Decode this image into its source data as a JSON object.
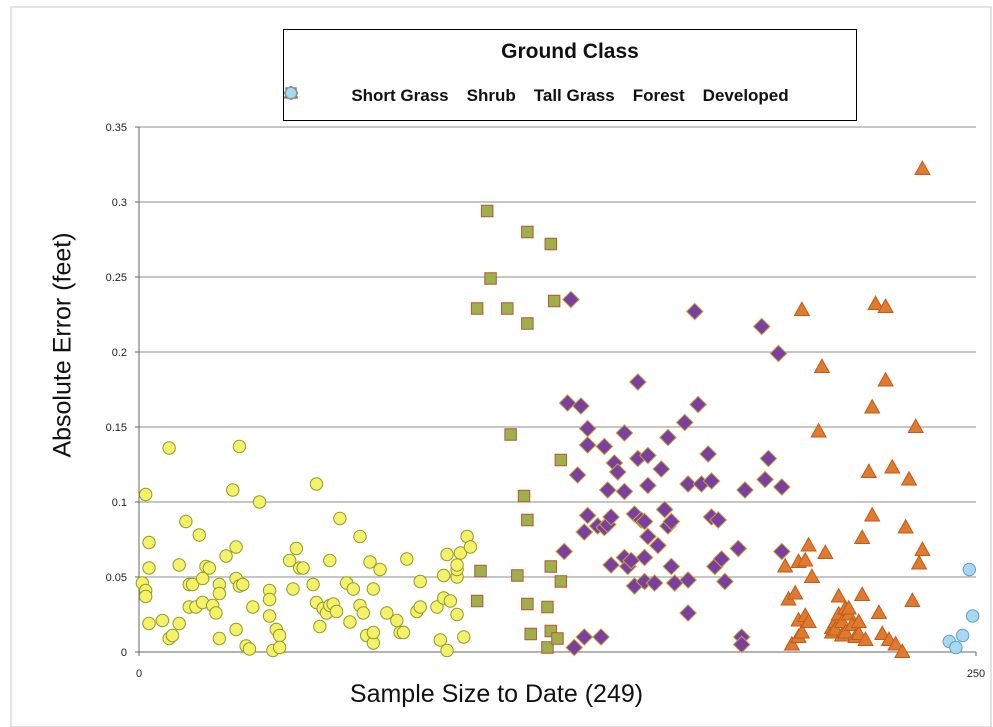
{
  "chart_data": {
    "type": "scatter",
    "title": "",
    "xlabel": "Sample Size to Date (249)",
    "ylabel": "Absolute Error (feet)",
    "xlim": [
      0,
      250
    ],
    "ylim": [
      0,
      0.35
    ],
    "x_ticks": [
      "0",
      "250"
    ],
    "y_ticks": [
      "0",
      "0.05",
      "0.1",
      "0.15",
      "0.2",
      "0.25",
      "0.3",
      "0.35"
    ],
    "grid": "horizontal",
    "legend": {
      "title": "Ground Class",
      "placement": "top"
    },
    "series": [
      {
        "name": "Short Grass",
        "marker": "circle",
        "color": "#f5f26a",
        "edge": "#8e9a2a",
        "points": [
          [
            1,
            0.046
          ],
          [
            2,
            0.105
          ],
          [
            2,
            0.041
          ],
          [
            2,
            0.037
          ],
          [
            3,
            0.073
          ],
          [
            3,
            0.056
          ],
          [
            3,
            0.019
          ],
          [
            7,
            0.021
          ],
          [
            9,
            0.136
          ],
          [
            9,
            0.009
          ],
          [
            10,
            0.011
          ],
          [
            12,
            0.058
          ],
          [
            12,
            0.019
          ],
          [
            14,
            0.087
          ],
          [
            15,
            0.045
          ],
          [
            15,
            0.03
          ],
          [
            16,
            0.045
          ],
          [
            17,
            0.03
          ],
          [
            18,
            0.078
          ],
          [
            19,
            0.049
          ],
          [
            19,
            0.033
          ],
          [
            20,
            0.057
          ],
          [
            21,
            0.056
          ],
          [
            22,
            0.031
          ],
          [
            23,
            0.026
          ],
          [
            24,
            0.045
          ],
          [
            24,
            0.039
          ],
          [
            24,
            0.009
          ],
          [
            26,
            0.064
          ],
          [
            28,
            0.108
          ],
          [
            29,
            0.015
          ],
          [
            29,
            0.049
          ],
          [
            29,
            0.07
          ],
          [
            30,
            0.137
          ],
          [
            30,
            0.044
          ],
          [
            31,
            0.045
          ],
          [
            32,
            0.004
          ],
          [
            33,
            0.002
          ],
          [
            34,
            0.03
          ],
          [
            36,
            0.1
          ],
          [
            39,
            0.041
          ],
          [
            39,
            0.035
          ],
          [
            39,
            0.024
          ],
          [
            40,
            0.001
          ],
          [
            41,
            0.015
          ],
          [
            42,
            0.011
          ],
          [
            42,
            0.003
          ],
          [
            45,
            0.061
          ],
          [
            46,
            0.042
          ],
          [
            47,
            0.069
          ],
          [
            48,
            0.056
          ],
          [
            49,
            0.056
          ],
          [
            52,
            0.045
          ],
          [
            53,
            0.112
          ],
          [
            53,
            0.033
          ],
          [
            54,
            0.017
          ],
          [
            55,
            0.029
          ],
          [
            56,
            0.026
          ],
          [
            57,
            0.031
          ],
          [
            57,
            0.061
          ],
          [
            58,
            0.032
          ],
          [
            59,
            0.027
          ],
          [
            60,
            0.089
          ],
          [
            62,
            0.046
          ],
          [
            63,
            0.02
          ],
          [
            64,
            0.042
          ],
          [
            66,
            0.077
          ],
          [
            66,
            0.031
          ],
          [
            67,
            0.026
          ],
          [
            68,
            0.011
          ],
          [
            69,
            0.06
          ],
          [
            70,
            0.006
          ],
          [
            70,
            0.013
          ],
          [
            70,
            0.042
          ],
          [
            72,
            0.055
          ],
          [
            74,
            0.026
          ],
          [
            77,
            0.021
          ],
          [
            78,
            0.013
          ],
          [
            79,
            0.013
          ],
          [
            80,
            0.062
          ],
          [
            83,
            0.027
          ],
          [
            84,
            0.047
          ],
          [
            84,
            0.03
          ],
          [
            89,
            0.03
          ],
          [
            90,
            0.008
          ],
          [
            91,
            0.036
          ],
          [
            91,
            0.051
          ],
          [
            92,
            0.001
          ],
          [
            92,
            0.065
          ],
          [
            93,
            0.034
          ],
          [
            95,
            0.05
          ],
          [
            95,
            0.055
          ],
          [
            95,
            0.058
          ],
          [
            95,
            0.025
          ],
          [
            96,
            0.066
          ],
          [
            97,
            0.01
          ],
          [
            98,
            0.077
          ],
          [
            99,
            0.07
          ]
        ]
      },
      {
        "name": "Shrub",
        "marker": "square",
        "color": "#9fb04a",
        "edge": "#b5573a",
        "points": [
          [
            101,
            0.229
          ],
          [
            101,
            0.034
          ],
          [
            102,
            0.054
          ],
          [
            104,
            0.294
          ],
          [
            105,
            0.249
          ],
          [
            110,
            0.229
          ],
          [
            111,
            0.145
          ],
          [
            113,
            0.051
          ],
          [
            115,
            0.104
          ],
          [
            116,
            0.219
          ],
          [
            116,
            0.088
          ],
          [
            116,
            0.032
          ],
          [
            116,
            0.28
          ],
          [
            117,
            0.012
          ],
          [
            122,
            0.03
          ],
          [
            122,
            0.003
          ],
          [
            123,
            0.014
          ],
          [
            123,
            0.057
          ],
          [
            123,
            0.272
          ],
          [
            124,
            0.234
          ],
          [
            125,
            0.009
          ],
          [
            126,
            0.047
          ],
          [
            126,
            0.128
          ]
        ]
      },
      {
        "name": "Tall Grass",
        "marker": "diamond",
        "color": "#7a3fa0",
        "edge": "#c9a531",
        "points": [
          [
            127,
            0.067
          ],
          [
            128,
            0.166
          ],
          [
            129,
            0.235
          ],
          [
            130,
            0.003
          ],
          [
            131,
            0.118
          ],
          [
            132,
            0.164
          ],
          [
            133,
            0.01
          ],
          [
            133,
            0.08
          ],
          [
            134,
            0.091
          ],
          [
            134,
            0.138
          ],
          [
            134,
            0.149
          ],
          [
            137,
            0.084
          ],
          [
            138,
            0.01
          ],
          [
            139,
            0.137
          ],
          [
            139,
            0.083
          ],
          [
            140,
            0.108
          ],
          [
            140,
            0.085
          ],
          [
            141,
            0.058
          ],
          [
            141,
            0.09
          ],
          [
            142,
            0.126
          ],
          [
            143,
            0.12
          ],
          [
            145,
            0.146
          ],
          [
            145,
            0.107
          ],
          [
            145,
            0.063
          ],
          [
            146,
            0.057
          ],
          [
            147,
            0.061
          ],
          [
            148,
            0.092
          ],
          [
            148,
            0.044
          ],
          [
            149,
            0.129
          ],
          [
            149,
            0.18
          ],
          [
            150,
            0.088
          ],
          [
            151,
            0.087
          ],
          [
            151,
            0.047
          ],
          [
            151,
            0.063
          ],
          [
            152,
            0.131
          ],
          [
            152,
            0.111
          ],
          [
            152,
            0.077
          ],
          [
            154,
            0.046
          ],
          [
            155,
            0.071
          ],
          [
            156,
            0.122
          ],
          [
            157,
            0.095
          ],
          [
            158,
            0.143
          ],
          [
            158,
            0.084
          ],
          [
            159,
            0.057
          ],
          [
            159,
            0.087
          ],
          [
            160,
            0.046
          ],
          [
            163,
            0.153
          ],
          [
            164,
            0.112
          ],
          [
            164,
            0.026
          ],
          [
            164,
            0.048
          ],
          [
            166,
            0.227
          ],
          [
            167,
            0.165
          ],
          [
            168,
            0.112
          ],
          [
            170,
            0.132
          ],
          [
            171,
            0.09
          ],
          [
            171,
            0.114
          ],
          [
            172,
            0.057
          ],
          [
            173,
            0.088
          ],
          [
            174,
            0.062
          ],
          [
            175,
            0.047
          ],
          [
            179,
            0.069
          ],
          [
            180,
            0.01
          ],
          [
            180,
            0.005
          ],
          [
            181,
            0.108
          ],
          [
            186,
            0.217
          ],
          [
            187,
            0.115
          ],
          [
            188,
            0.129
          ],
          [
            191,
            0.199
          ],
          [
            192,
            0.11
          ],
          [
            192,
            0.067
          ]
        ]
      },
      {
        "name": "Forest",
        "marker": "triangle",
        "color": "#e07a2e",
        "edge": "#c15a1a",
        "points": [
          [
            193,
            0.057
          ],
          [
            194,
            0.035
          ],
          [
            195,
            0.005
          ],
          [
            196,
            0.039
          ],
          [
            197,
            0.01
          ],
          [
            197,
            0.06
          ],
          [
            197,
            0.021
          ],
          [
            198,
            0.013
          ],
          [
            198,
            0.228
          ],
          [
            199,
            0.024
          ],
          [
            199,
            0.061
          ],
          [
            200,
            0.071
          ],
          [
            200,
            0.02
          ],
          [
            201,
            0.05
          ],
          [
            203,
            0.147
          ],
          [
            204,
            0.19
          ],
          [
            205,
            0.066
          ],
          [
            207,
            0.016
          ],
          [
            207,
            0.013
          ],
          [
            208,
            0.02
          ],
          [
            208,
            0.015
          ],
          [
            209,
            0.025
          ],
          [
            209,
            0.037
          ],
          [
            210,
            0.011
          ],
          [
            210,
            0.02
          ],
          [
            211,
            0.029
          ],
          [
            211,
            0.013
          ],
          [
            212,
            0.025
          ],
          [
            212,
            0.029
          ],
          [
            213,
            0.018
          ],
          [
            214,
            0.01
          ],
          [
            215,
            0.012
          ],
          [
            215,
            0.02
          ],
          [
            216,
            0.076
          ],
          [
            216,
            0.038
          ],
          [
            217,
            0.008
          ],
          [
            218,
            0.12
          ],
          [
            219,
            0.091
          ],
          [
            219,
            0.163
          ],
          [
            220,
            0.232
          ],
          [
            221,
            0.026
          ],
          [
            222,
            0.012
          ],
          [
            223,
            0.23
          ],
          [
            223,
            0.181
          ],
          [
            224,
            0.008
          ],
          [
            225,
            0.123
          ],
          [
            226,
            0.005
          ],
          [
            228,
            0.0
          ],
          [
            229,
            0.083
          ],
          [
            230,
            0.115
          ],
          [
            231,
            0.034
          ],
          [
            232,
            0.15
          ],
          [
            233,
            0.059
          ],
          [
            234,
            0.068
          ],
          [
            234,
            0.322
          ]
        ]
      },
      {
        "name": "Developed",
        "marker": "circle",
        "color": "#a8d8f0",
        "edge": "#5f9ec9",
        "points": [
          [
            242,
            0.007
          ],
          [
            244,
            0.003
          ],
          [
            246,
            0.011
          ],
          [
            248,
            0.055
          ],
          [
            249,
            0.024
          ]
        ]
      }
    ]
  }
}
